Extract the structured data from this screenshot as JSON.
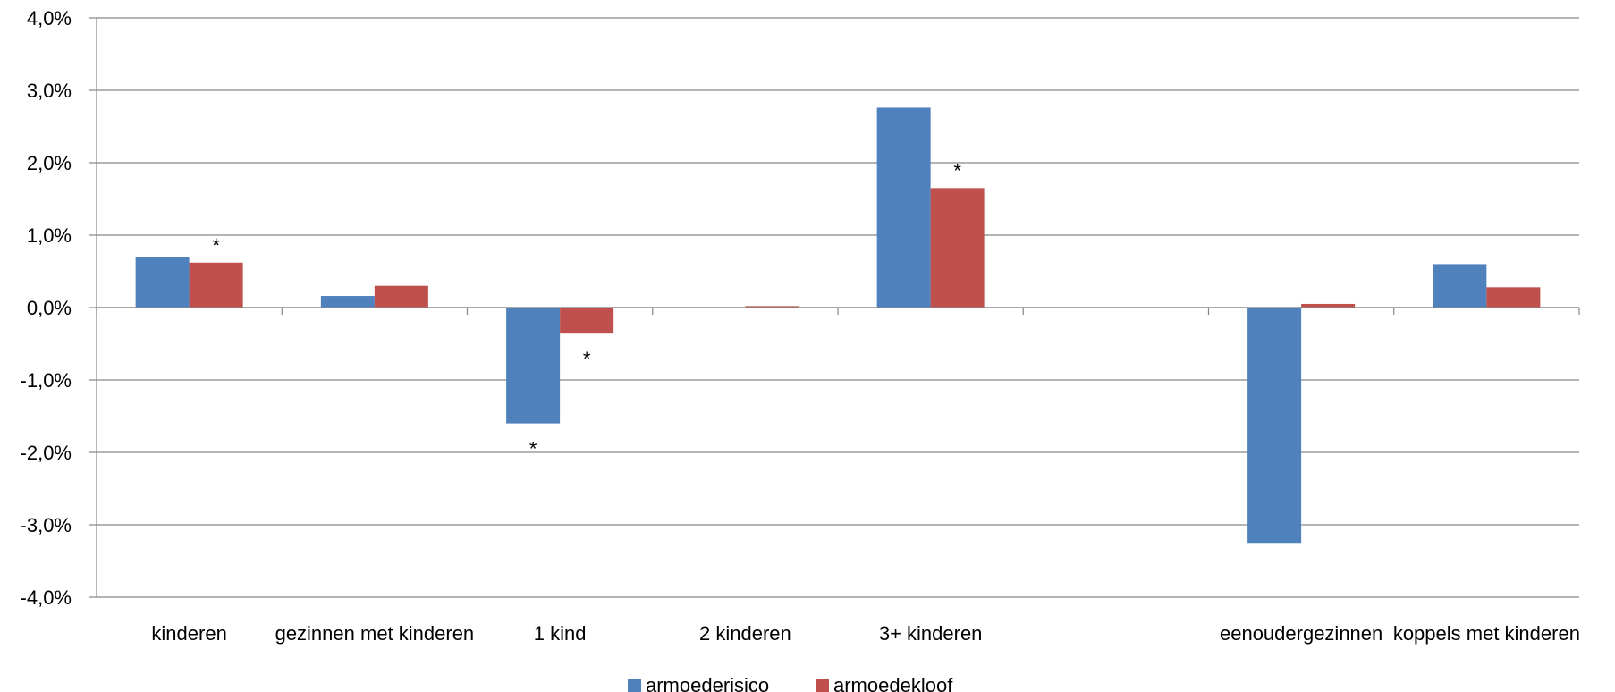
{
  "chart_data": {
    "type": "bar",
    "categories": [
      "kinderen",
      "gezinnen met kinderen",
      "1 kind",
      "2 kinderen",
      "3+ kinderen",
      "",
      "eenoudergezinnen",
      "koppels met kinderen"
    ],
    "series": [
      {
        "name": "armoederisico",
        "color": "#4F81BD",
        "values": [
          0.7,
          0.16,
          -1.6,
          0.0,
          2.76,
          null,
          -3.25,
          0.6
        ]
      },
      {
        "name": "armoedekloof",
        "color": "#C0504D",
        "values": [
          0.62,
          0.3,
          -0.36,
          0.02,
          1.65,
          null,
          0.05,
          0.28
        ]
      }
    ],
    "significance": [
      {
        "series": 1,
        "category": 0,
        "label": "*"
      },
      {
        "series": 1,
        "category": 2,
        "label": "*"
      },
      {
        "series": 0,
        "category": 2,
        "label": "*"
      },
      {
        "series": 1,
        "category": 4,
        "label": "*"
      }
    ],
    "yticks": [
      {
        "value": 4,
        "label": "4,0%"
      },
      {
        "value": 3,
        "label": "3,0%"
      },
      {
        "value": 2,
        "label": "2,0%"
      },
      {
        "value": 1,
        "label": "1,0%"
      },
      {
        "value": 0,
        "label": "0,0%"
      },
      {
        "value": -1,
        "label": "-1,0%"
      },
      {
        "value": -2,
        "label": "-2,0%"
      },
      {
        "value": -3,
        "label": "-3,0%"
      },
      {
        "value": -4,
        "label": "-4,0%"
      }
    ],
    "ylim": [
      -4,
      4
    ],
    "grid": true,
    "legend_position": "bottom",
    "title": "",
    "xlabel": "",
    "ylabel": ""
  }
}
